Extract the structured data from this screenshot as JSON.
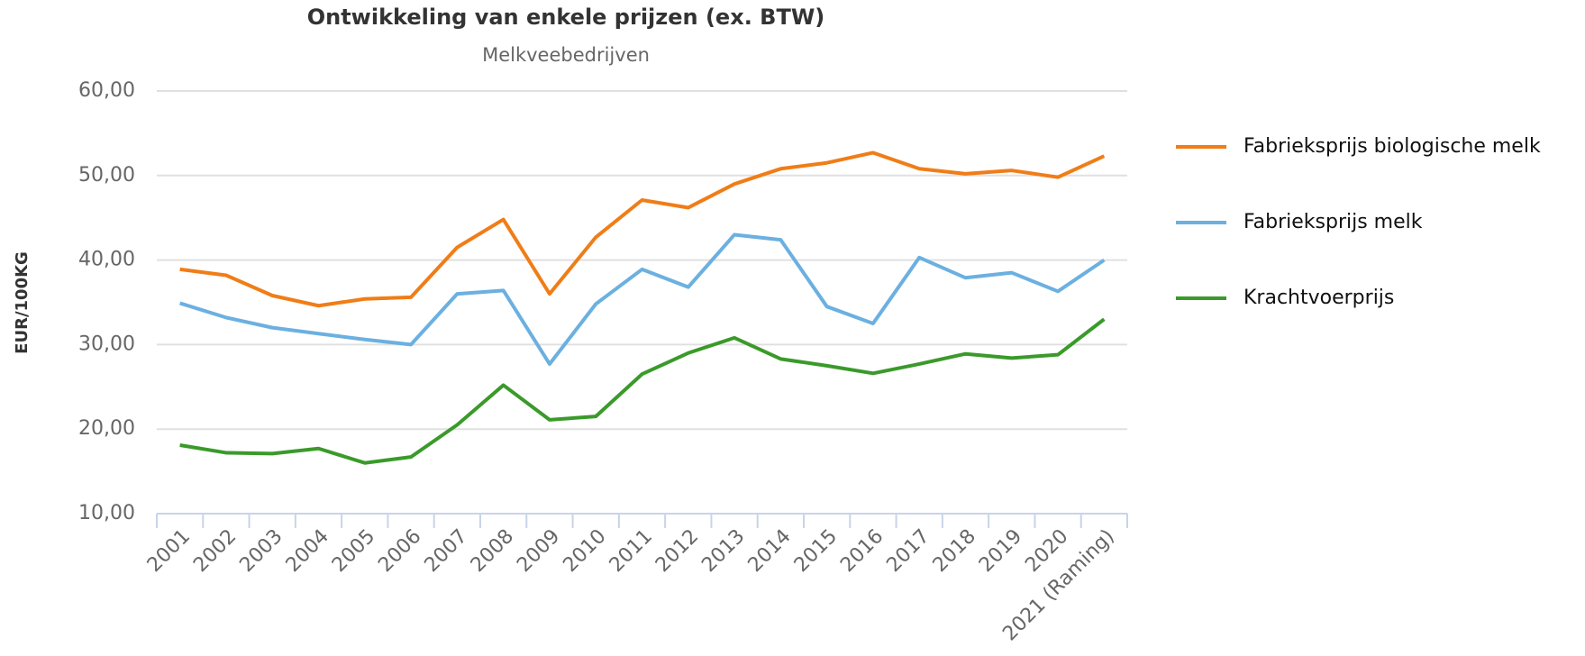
{
  "chart_data": {
    "type": "line",
    "title": "Ontwikkeling van enkele prijzen (ex. BTW)",
    "subtitle": "Melkveebedrijven",
    "y_label": "EUR/100KG",
    "categories": [
      "2001",
      "2002",
      "2003",
      "2004",
      "2005",
      "2006",
      "2007",
      "2008",
      "2009",
      "2010",
      "2011",
      "2012",
      "2013",
      "2014",
      "2015",
      "2016",
      "2017",
      "2018",
      "2019",
      "2020",
      "2021 (Raming)"
    ],
    "series": [
      {
        "name": "Fabrieksprijs biologische melk",
        "color": "#f07d17",
        "values": [
          38.9,
          38.2,
          35.8,
          34.6,
          35.4,
          35.6,
          41.5,
          44.8,
          36.0,
          42.7,
          47.1,
          46.2,
          49.0,
          50.8,
          51.5,
          52.7,
          50.8,
          50.2,
          50.6,
          49.8,
          52.3
        ]
      },
      {
        "name": "Fabrieksprijs melk",
        "color": "#6bb0e0",
        "values": [
          34.9,
          33.2,
          32.0,
          31.3,
          30.6,
          30.0,
          36.0,
          36.4,
          27.7,
          34.8,
          38.9,
          36.8,
          43.0,
          42.4,
          34.5,
          32.5,
          40.3,
          37.9,
          38.5,
          36.3,
          40.0
        ]
      },
      {
        "name": "Krachtvoerprijs",
        "color": "#3a9a2a",
        "values": [
          18.1,
          17.2,
          17.1,
          17.7,
          16.0,
          16.7,
          20.5,
          25.2,
          21.1,
          21.5,
          26.5,
          29.0,
          30.8,
          28.3,
          27.5,
          26.6,
          27.7,
          28.9,
          28.4,
          28.8,
          33.0
        ]
      }
    ],
    "ylim": [
      10,
      60
    ],
    "yticks": [
      {
        "value": 10,
        "label": "10,00"
      },
      {
        "value": 20,
        "label": "20,00"
      },
      {
        "value": 30,
        "label": "30,00"
      },
      {
        "value": 40,
        "label": "40,00"
      },
      {
        "value": 50,
        "label": "50,00"
      },
      {
        "value": 60,
        "label": "60,00"
      }
    ],
    "grid": true,
    "legend": "right"
  }
}
